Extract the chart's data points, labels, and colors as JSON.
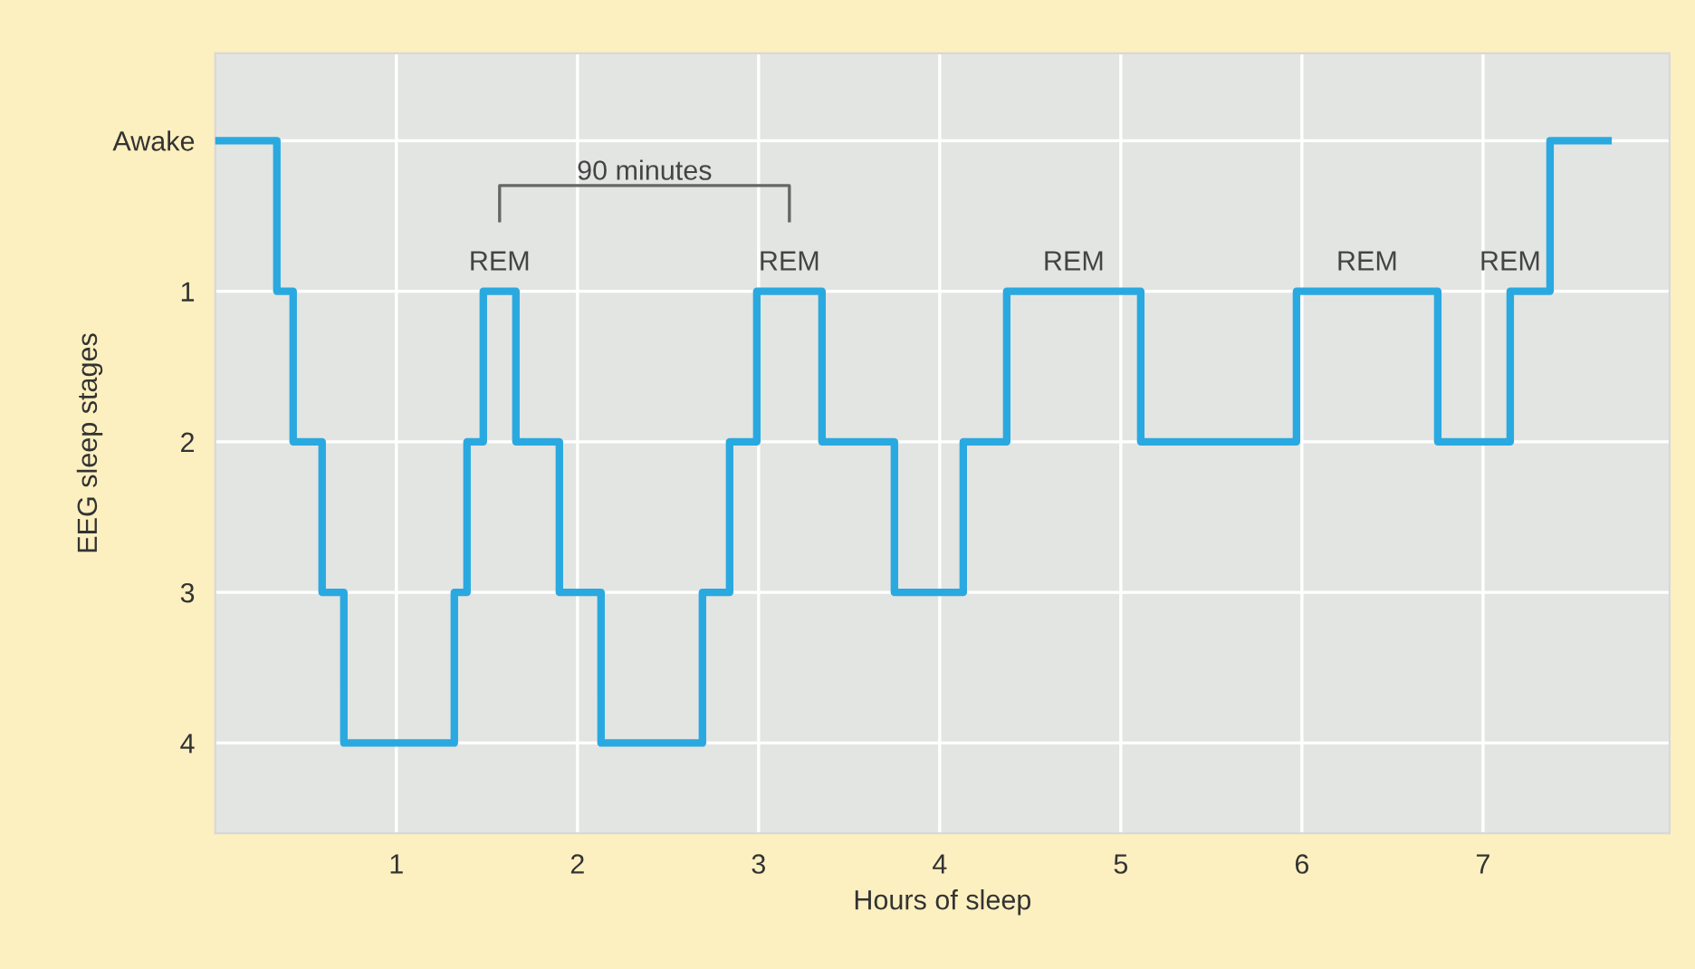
{
  "chart_data": {
    "type": "step",
    "xlabel": "Hours of sleep",
    "ylabel": "EEG sleep stages",
    "x": [
      0,
      0.34,
      0.43,
      0.59,
      0.71,
      1.32,
      1.39,
      1.48,
      1.66,
      1.9,
      2.13,
      2.69,
      2.84,
      2.99,
      3.35,
      3.75,
      4.13,
      4.37,
      5.11,
      5.97,
      6.75,
      7.15,
      7.37,
      7.69
    ],
    "series": [
      {
        "color": "#29a9e0",
        "values": [
          0,
          1,
          2,
          3,
          4,
          3,
          2,
          1,
          2,
          3,
          4,
          3,
          2,
          1,
          2,
          3,
          2,
          1,
          2,
          1,
          2,
          1,
          0,
          0
        ]
      }
    ],
    "xlim": [
      0,
      8.03
    ],
    "xticks": [
      1,
      2,
      3,
      4,
      5,
      6,
      7
    ],
    "ylim": [
      4.6,
      -0.58
    ],
    "yticks": [
      {
        "value": 0,
        "label": "Awake"
      },
      1,
      2,
      3,
      4
    ],
    "grid": true,
    "line_style": "solid",
    "marker": "none",
    "annotations": [
      "90 minutes",
      {
        "text": "REM",
        "x": 1.57,
        "y": 1
      },
      {
        "text": "REM",
        "x": 3.17,
        "y": 1
      },
      {
        "text": "REM",
        "x": 4.74,
        "y": 1
      },
      {
        "text": "REM",
        "x": 6.36,
        "y": 1
      },
      {
        "text": "REM",
        "x": 7.15,
        "y": 1
      }
    ]
  }
}
